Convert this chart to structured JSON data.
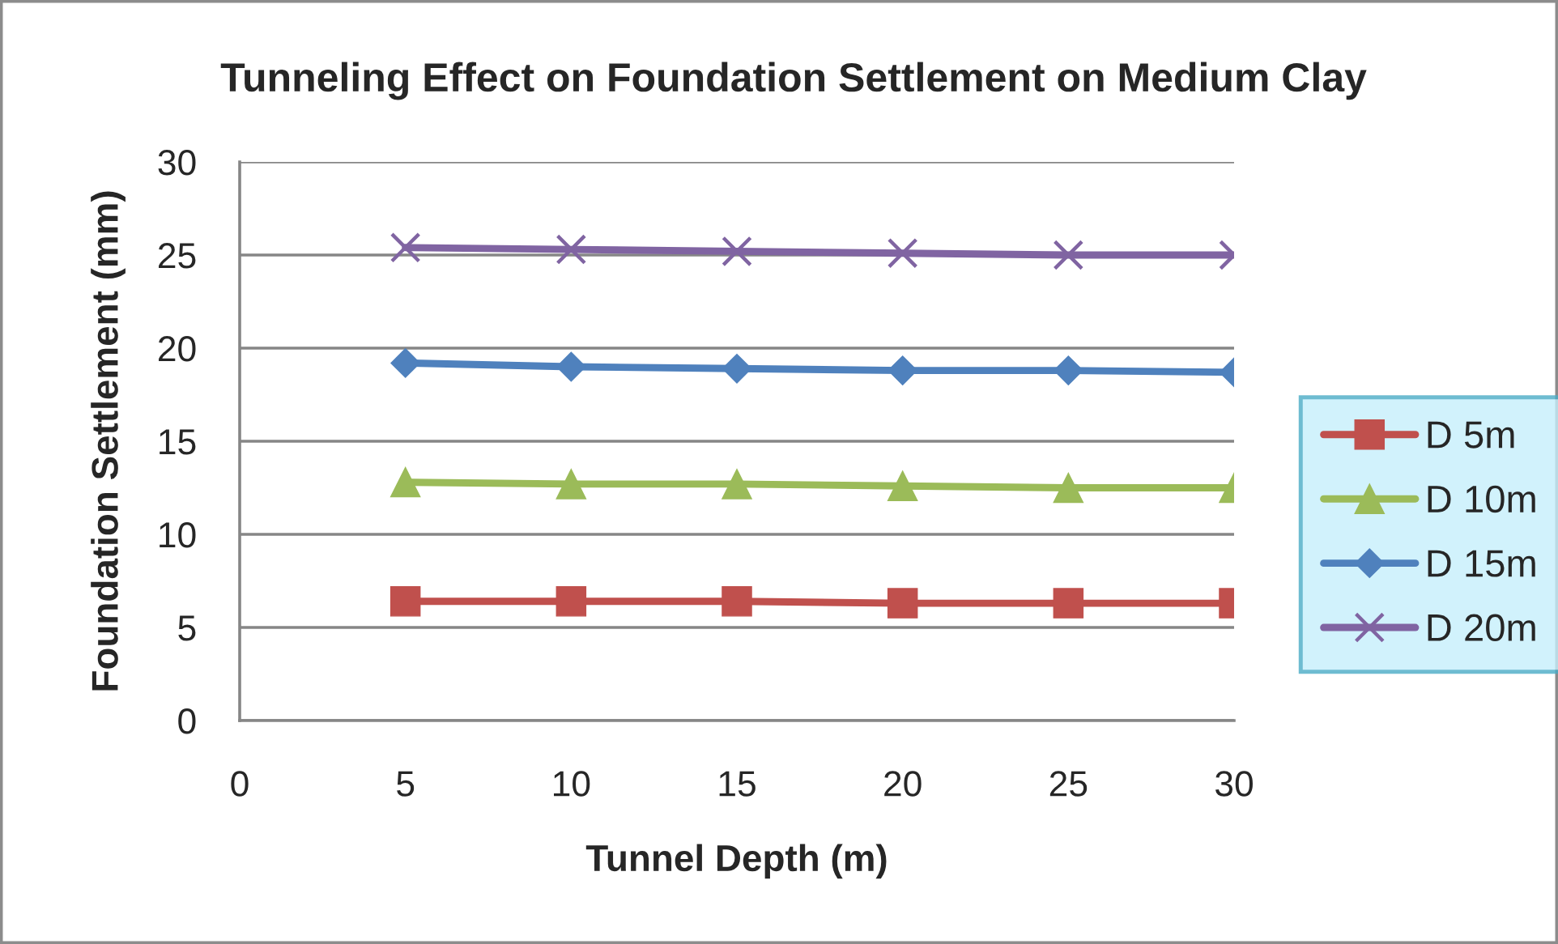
{
  "chart_data": {
    "type": "line",
    "title": "Tunneling Effect on Foundation Settlement on Medium Clay",
    "xlabel": "Tunnel Depth (m)",
    "ylabel": "Foundation Settlement (mm)",
    "x": [
      5,
      10,
      15,
      20,
      25,
      30
    ],
    "series": [
      {
        "name": "D 5m",
        "color": "#c0504d",
        "marker": "square",
        "values": [
          6.4,
          6.4,
          6.4,
          6.3,
          6.3,
          6.3
        ]
      },
      {
        "name": "D 10m",
        "color": "#9bbb59",
        "marker": "triangle",
        "values": [
          12.8,
          12.7,
          12.7,
          12.6,
          12.5,
          12.5
        ]
      },
      {
        "name": "D 15m",
        "color": "#4f81bd",
        "marker": "diamond",
        "values": [
          19.2,
          19.0,
          18.9,
          18.8,
          18.8,
          18.7
        ]
      },
      {
        "name": "D 20m",
        "color": "#8064a2",
        "marker": "cross",
        "values": [
          25.4,
          25.3,
          25.2,
          25.1,
          25.0,
          25.0
        ]
      }
    ],
    "xlim": [
      0,
      30
    ],
    "xticks": [
      0,
      5,
      10,
      15,
      20,
      25,
      30
    ],
    "ylim": [
      0,
      30
    ],
    "yticks": [
      0,
      5,
      10,
      15,
      20,
      25,
      30
    ],
    "grid": "y",
    "legend": "right",
    "line_style": "solid"
  }
}
